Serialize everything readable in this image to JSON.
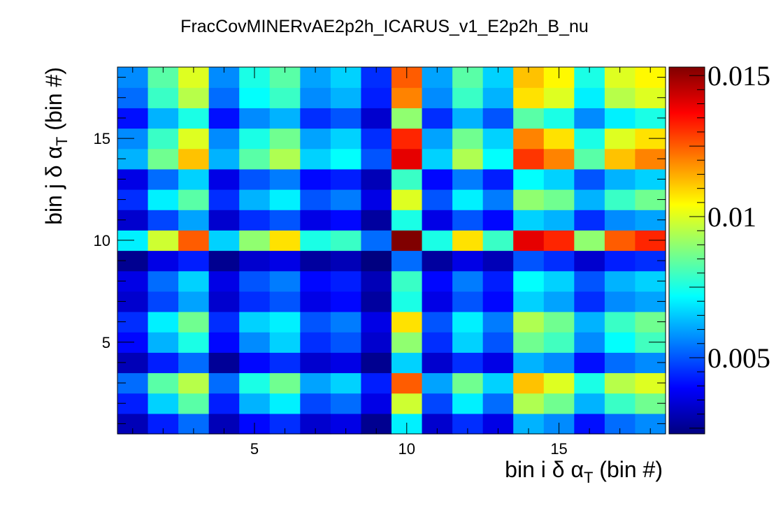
{
  "chart_data": {
    "type": "heatmap",
    "title": "FracCovMINERvAE2p2h_ICARUS_v1_E2p2h_B_nu",
    "xlabel": "bin i δ α",
    "xlabel_sub": "T",
    "xlabel_suffix": " (bin #)",
    "ylabel": "bin j δ α",
    "ylabel_sub": "T",
    "ylabel_suffix": " (bin #)",
    "x_bins": 18,
    "y_bins": 18,
    "x_range": [
      0.5,
      18.5
    ],
    "y_range": [
      0.5,
      18.5
    ],
    "x_ticks": [
      5,
      10,
      15
    ],
    "y_ticks": [
      5,
      10,
      15
    ],
    "x_tick_labels": [
      "5",
      "10",
      "15"
    ],
    "y_tick_labels": [
      "5",
      "10",
      "15"
    ],
    "z_range": [
      0.0023,
      0.0153
    ],
    "colorbar_ticks": [
      0.005,
      0.01,
      0.015
    ],
    "colorbar_tick_labels": [
      "0.005",
      "0.01",
      "0.015"
    ],
    "colormap": "jet",
    "values": [
      [
        0.003,
        0.0043,
        0.0053,
        0.003,
        0.004,
        0.0045,
        0.0033,
        0.0036,
        0.0025,
        0.007,
        0.0033,
        0.0045,
        0.0036,
        0.0062,
        0.0057,
        0.0041,
        0.0053,
        0.0057
      ],
      [
        0.0043,
        0.0066,
        0.0083,
        0.0043,
        0.0062,
        0.007,
        0.0048,
        0.0053,
        0.0036,
        0.0098,
        0.0048,
        0.007,
        0.0053,
        0.0094,
        0.0086,
        0.0062,
        0.0079,
        0.0086
      ],
      [
        0.0053,
        0.0083,
        0.0095,
        0.0053,
        0.0075,
        0.0086,
        0.006,
        0.0066,
        0.0043,
        0.0125,
        0.006,
        0.0086,
        0.0066,
        0.0112,
        0.01,
        0.0075,
        0.0095,
        0.01
      ],
      [
        0.003,
        0.0043,
        0.0053,
        0.0026,
        0.004,
        0.0045,
        0.0033,
        0.0036,
        0.0025,
        0.0066,
        0.0033,
        0.0045,
        0.0036,
        0.0062,
        0.0057,
        0.0041,
        0.0053,
        0.0057
      ],
      [
        0.004,
        0.0062,
        0.0075,
        0.004,
        0.0057,
        0.0066,
        0.0045,
        0.005,
        0.0033,
        0.009,
        0.0045,
        0.0066,
        0.005,
        0.0086,
        0.008,
        0.0057,
        0.0072,
        0.008
      ],
      [
        0.0045,
        0.007,
        0.0086,
        0.0045,
        0.0066,
        0.007,
        0.005,
        0.0055,
        0.0036,
        0.0108,
        0.005,
        0.007,
        0.0055,
        0.0094,
        0.0086,
        0.0062,
        0.0079,
        0.0086
      ],
      [
        0.0033,
        0.0048,
        0.006,
        0.0033,
        0.0045,
        0.005,
        0.0036,
        0.004,
        0.0027,
        0.0075,
        0.0036,
        0.005,
        0.004,
        0.0066,
        0.006,
        0.0045,
        0.0057,
        0.006
      ],
      [
        0.0036,
        0.0053,
        0.0066,
        0.0036,
        0.005,
        0.0055,
        0.004,
        0.0043,
        0.003,
        0.0079,
        0.004,
        0.0055,
        0.0043,
        0.0072,
        0.0066,
        0.005,
        0.0062,
        0.0066
      ],
      [
        0.0025,
        0.0036,
        0.0043,
        0.0025,
        0.0033,
        0.0036,
        0.0027,
        0.003,
        0.0023,
        0.0053,
        0.0027,
        0.0036,
        0.003,
        0.005,
        0.0045,
        0.0033,
        0.0043,
        0.0045
      ],
      [
        0.007,
        0.0098,
        0.0125,
        0.0066,
        0.009,
        0.0108,
        0.0075,
        0.0079,
        0.0053,
        0.0153,
        0.0075,
        0.0108,
        0.0079,
        0.014,
        0.0132,
        0.009,
        0.0125,
        0.0132
      ],
      [
        0.0033,
        0.0048,
        0.006,
        0.0033,
        0.0045,
        0.005,
        0.0036,
        0.004,
        0.0027,
        0.0075,
        0.0036,
        0.005,
        0.004,
        0.0066,
        0.0062,
        0.0045,
        0.0057,
        0.006
      ],
      [
        0.0045,
        0.007,
        0.0083,
        0.0045,
        0.0062,
        0.007,
        0.005,
        0.0055,
        0.0036,
        0.01,
        0.005,
        0.007,
        0.0055,
        0.009,
        0.0086,
        0.0062,
        0.0079,
        0.0086
      ],
      [
        0.0036,
        0.0053,
        0.0066,
        0.0036,
        0.005,
        0.0055,
        0.004,
        0.0043,
        0.003,
        0.0079,
        0.004,
        0.0055,
        0.0043,
        0.0072,
        0.0066,
        0.005,
        0.0062,
        0.0066
      ],
      [
        0.0062,
        0.0086,
        0.0112,
        0.0062,
        0.0083,
        0.0094,
        0.0066,
        0.0072,
        0.005,
        0.014,
        0.0066,
        0.0094,
        0.0072,
        0.013,
        0.012,
        0.0083,
        0.0112,
        0.012
      ],
      [
        0.0057,
        0.0079,
        0.01,
        0.0057,
        0.0075,
        0.0086,
        0.006,
        0.0066,
        0.0045,
        0.0132,
        0.006,
        0.0086,
        0.0066,
        0.012,
        0.0108,
        0.0075,
        0.01,
        0.0108
      ],
      [
        0.0041,
        0.0062,
        0.0075,
        0.0041,
        0.0057,
        0.0062,
        0.0045,
        0.005,
        0.0033,
        0.009,
        0.0045,
        0.0062,
        0.005,
        0.0083,
        0.0075,
        0.0057,
        0.007,
        0.0075
      ],
      [
        0.0053,
        0.0079,
        0.0095,
        0.0053,
        0.0072,
        0.0079,
        0.0057,
        0.0062,
        0.0043,
        0.012,
        0.0057,
        0.0079,
        0.0062,
        0.0108,
        0.01,
        0.007,
        0.0095,
        0.01
      ],
      [
        0.0057,
        0.0083,
        0.01,
        0.0057,
        0.0075,
        0.0083,
        0.006,
        0.0066,
        0.0045,
        0.0125,
        0.006,
        0.0083,
        0.0066,
        0.0112,
        0.0105,
        0.0075,
        0.01,
        0.0105
      ]
    ]
  }
}
